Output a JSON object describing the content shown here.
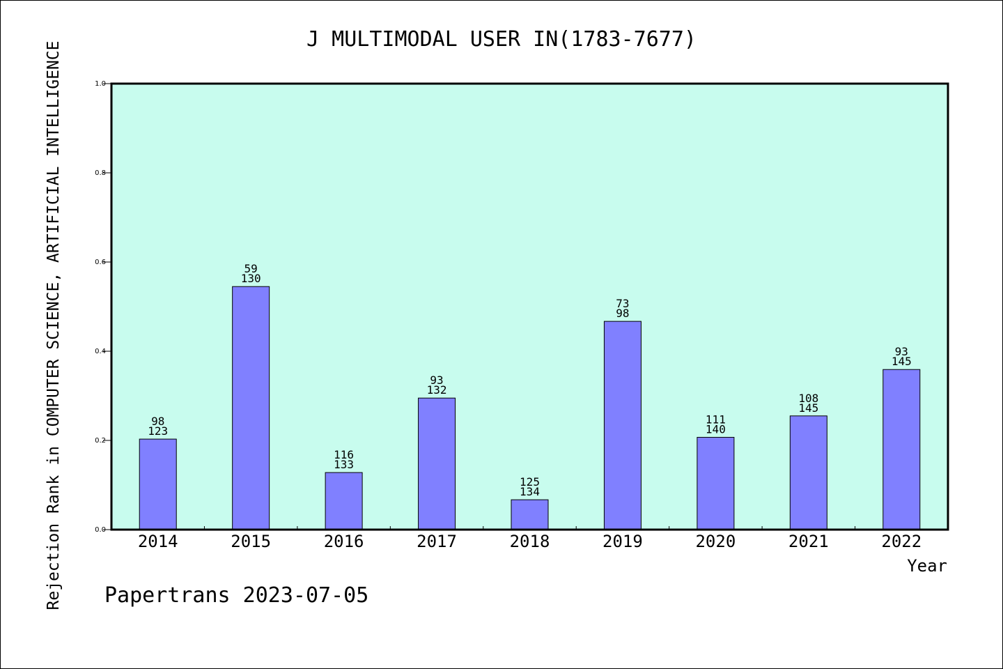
{
  "chart_data": {
    "type": "bar",
    "title": "J MULTIMODAL USER IN(1783-7677)",
    "xlabel": "Year",
    "ylabel": "Rejection Rank in COMPUTER SCIENCE, ARTIFICIAL INTELLIGENCE",
    "ylim": [
      0,
      1.0
    ],
    "yticks": [
      "0.0",
      "0.2",
      "0.4",
      "0.6",
      "0.8",
      "1.0"
    ],
    "categories": [
      "2014",
      "2015",
      "2016",
      "2017",
      "2018",
      "2019",
      "2020",
      "2021",
      "2022"
    ],
    "values": [
      0.203,
      0.545,
      0.128,
      0.295,
      0.067,
      0.467,
      0.207,
      0.255,
      0.359
    ],
    "labels_top": [
      "98",
      "59",
      "116",
      "93",
      "125",
      "73",
      "111",
      "108",
      "93"
    ],
    "labels_bottom": [
      "123",
      "130",
      "133",
      "132",
      "134",
      "98",
      "140",
      "145",
      "145"
    ],
    "grid": false,
    "colors": {
      "bar": "#8080ff",
      "plot_background": "#c8fcee",
      "axis": "#000000"
    }
  },
  "footer": "Papertrans 2023-07-05"
}
